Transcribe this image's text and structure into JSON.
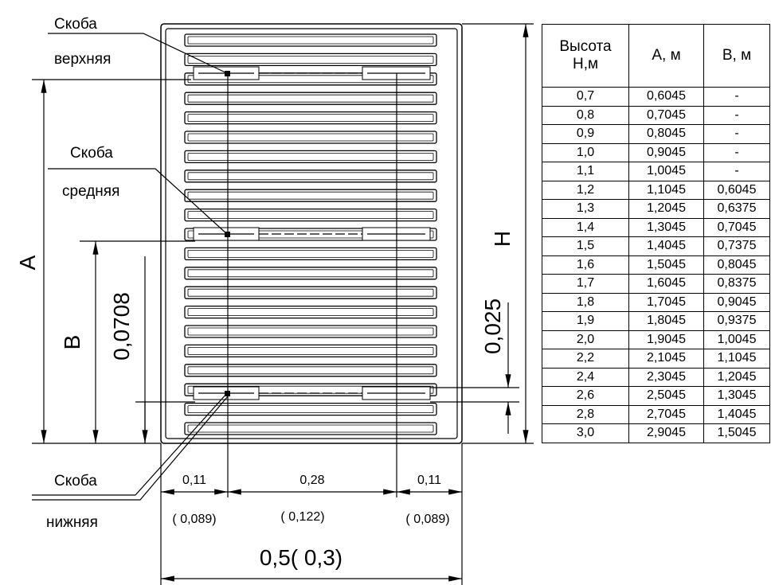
{
  "drawing": {
    "labels": [
      {
        "text": "Скоба"
      },
      {
        "text": "верхняя"
      },
      {
        "text": "Скоба"
      },
      {
        "text": "средняя"
      },
      {
        "text": "Скоба"
      },
      {
        "text": "нижняя"
      }
    ],
    "dimensions": {
      "a": "A",
      "b": "B",
      "b_offset": "0,0708",
      "h": "H",
      "h_offset": "0,025",
      "left": "0,11",
      "middle": "0,28",
      "right": "0,11",
      "left_alt": "( 0,089)",
      "middle_alt": "( 0,122)",
      "right_alt": "( 0,089)",
      "width": "0,5( 0,3)"
    }
  },
  "table": {
    "header": [
      "Высота\nН,м",
      "А, м",
      "В, м"
    ],
    "rows": [
      [
        "0,7",
        "0,6045",
        "-"
      ],
      [
        "0,8",
        "0,7045",
        "-"
      ],
      [
        "0,9",
        "0,8045",
        "-"
      ],
      [
        "1,0",
        "0,9045",
        "-"
      ],
      [
        "1,1",
        "1,0045",
        "-"
      ],
      [
        "1,2",
        "1,1045",
        "0,6045"
      ],
      [
        "1,3",
        "1,2045",
        "0,6375"
      ],
      [
        "1,4",
        "1,3045",
        "0,7045"
      ],
      [
        "1,5",
        "1,4045",
        "0,7375"
      ],
      [
        "1,6",
        "1,5045",
        "0,8045"
      ],
      [
        "1,7",
        "1,6045",
        "0,8375"
      ],
      [
        "1,8",
        "1,7045",
        "0,9045"
      ],
      [
        "1,9",
        "1,8045",
        "0,9375"
      ],
      [
        "2,0",
        "1,9045",
        "1,0045"
      ],
      [
        "2,2",
        "2,1045",
        "1,1045"
      ],
      [
        "2,4",
        "2,3045",
        "1,2045"
      ],
      [
        "2,6",
        "2,5045",
        "1,3045"
      ],
      [
        "2,8",
        "2,7045",
        "1,4045"
      ],
      [
        "3,0",
        "2,9045",
        "1,5045"
      ]
    ]
  }
}
